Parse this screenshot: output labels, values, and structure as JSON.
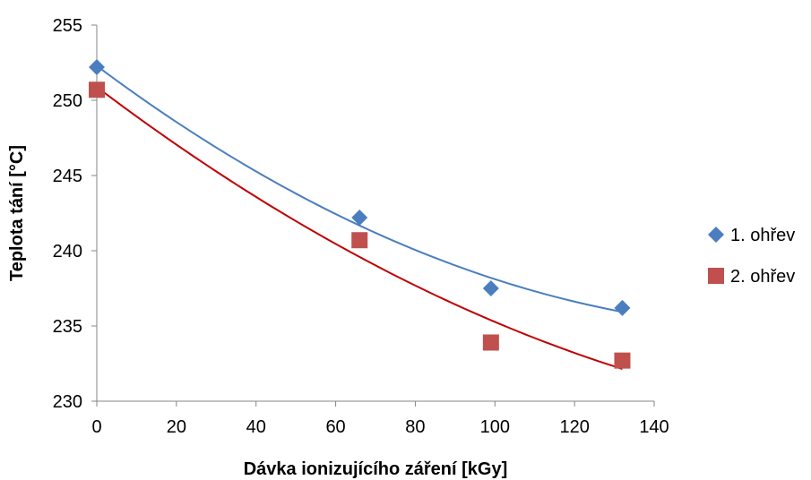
{
  "chart_data": {
    "type": "scatter",
    "xlabel": "Dávka ionizujícího záření [kGy]",
    "ylabel": "Teplota tání [°C]",
    "xlim": [
      0,
      140
    ],
    "ylim": [
      230,
      255
    ],
    "xticks": [
      0,
      20,
      40,
      60,
      80,
      100,
      120,
      140
    ],
    "yticks": [
      230,
      235,
      240,
      245,
      250,
      255
    ],
    "grid": false,
    "legend_position": "right",
    "series": [
      {
        "name": "1. ohřev",
        "marker": "diamond",
        "color": "#4a7ebf",
        "trendline": "polynomial",
        "trend_color": "#4a7ebf",
        "x": [
          0,
          66,
          99,
          132
        ],
        "y": [
          252.2,
          242.2,
          237.5,
          236.2
        ]
      },
      {
        "name": "2. ohřev",
        "marker": "square",
        "color": "#c0504d",
        "trendline": "polynomial",
        "trend_color": "#c00000",
        "x": [
          0,
          66,
          99,
          132
        ],
        "y": [
          250.7,
          240.7,
          233.9,
          232.7
        ]
      }
    ]
  }
}
